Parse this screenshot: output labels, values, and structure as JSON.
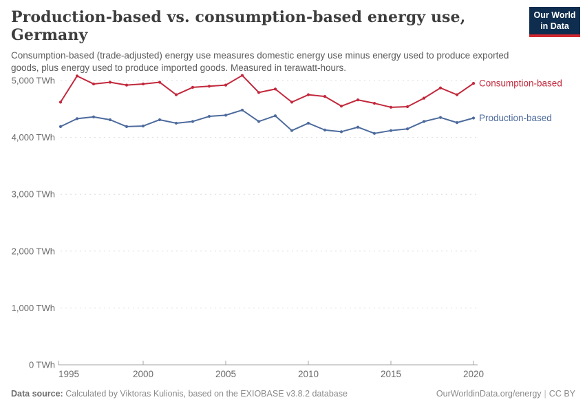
{
  "header": {
    "title": "Production-based vs. consumption-based energy use, Germany",
    "subtitle": "Consumption-based (trade-adjusted) energy use measures domestic energy use minus energy used to produce exported goods, plus energy used to produce imported goods. Measured in terawatt-hours."
  },
  "logo": {
    "line1": "Our World",
    "line2": "in Data",
    "bg_color": "#0F2D4F",
    "accent_color": "#D2262E"
  },
  "chart_data": {
    "type": "line",
    "title": "Production-based vs. consumption-based energy use, Germany",
    "xlabel": "",
    "ylabel": "TWh",
    "x": [
      1995,
      1996,
      1997,
      1998,
      1999,
      2000,
      2001,
      2002,
      2003,
      2004,
      2005,
      2006,
      2007,
      2008,
      2009,
      2010,
      2011,
      2012,
      2013,
      2014,
      2015,
      2016,
      2017,
      2018,
      2019,
      2020
    ],
    "series": [
      {
        "name": "Consumption-based",
        "color": "#C2283C",
        "values": [
          4620,
          5080,
          4940,
          4970,
          4920,
          4940,
          4970,
          4750,
          4880,
          4900,
          4920,
          5090,
          4790,
          4850,
          4620,
          4750,
          4720,
          4550,
          4660,
          4600,
          4530,
          4540,
          4690,
          4870,
          4750,
          4950
        ]
      },
      {
        "name": "Production-based",
        "color": "#4C6A9C",
        "values": [
          4190,
          4330,
          4360,
          4310,
          4190,
          4200,
          4310,
          4250,
          4280,
          4370,
          4390,
          4480,
          4280,
          4380,
          4120,
          4250,
          4130,
          4100,
          4180,
          4070,
          4120,
          4150,
          4280,
          4350,
          4260,
          4340
        ]
      }
    ],
    "ylim": [
      0,
      5200
    ],
    "yticks": [
      0,
      1000,
      2000,
      3000,
      4000,
      5000
    ],
    "ytick_labels": [
      "0 TWh",
      "1,000 TWh",
      "2,000 TWh",
      "3,000 TWh",
      "4,000 TWh",
      "5,000 TWh"
    ],
    "xticks": [
      1995,
      2000,
      2005,
      2010,
      2015,
      2020
    ],
    "xtick_labels": [
      "1995",
      "2000",
      "2005",
      "2010",
      "2015",
      "2020"
    ],
    "grid": "horizontal-dashed",
    "legend_position": "end-of-line-labels",
    "colors": {
      "grid_line": "#dcdcdc",
      "axis_line": "#a3a3a3",
      "tick_label": "#6b6b6b"
    }
  },
  "footer": {
    "source_label": "Data source:",
    "source_text": "Calculated by Viktoras Kulionis, based on the EXIOBASE v3.8.2 database",
    "site": "OurWorldinData.org/energy",
    "separator": "|",
    "license": "CC BY"
  }
}
